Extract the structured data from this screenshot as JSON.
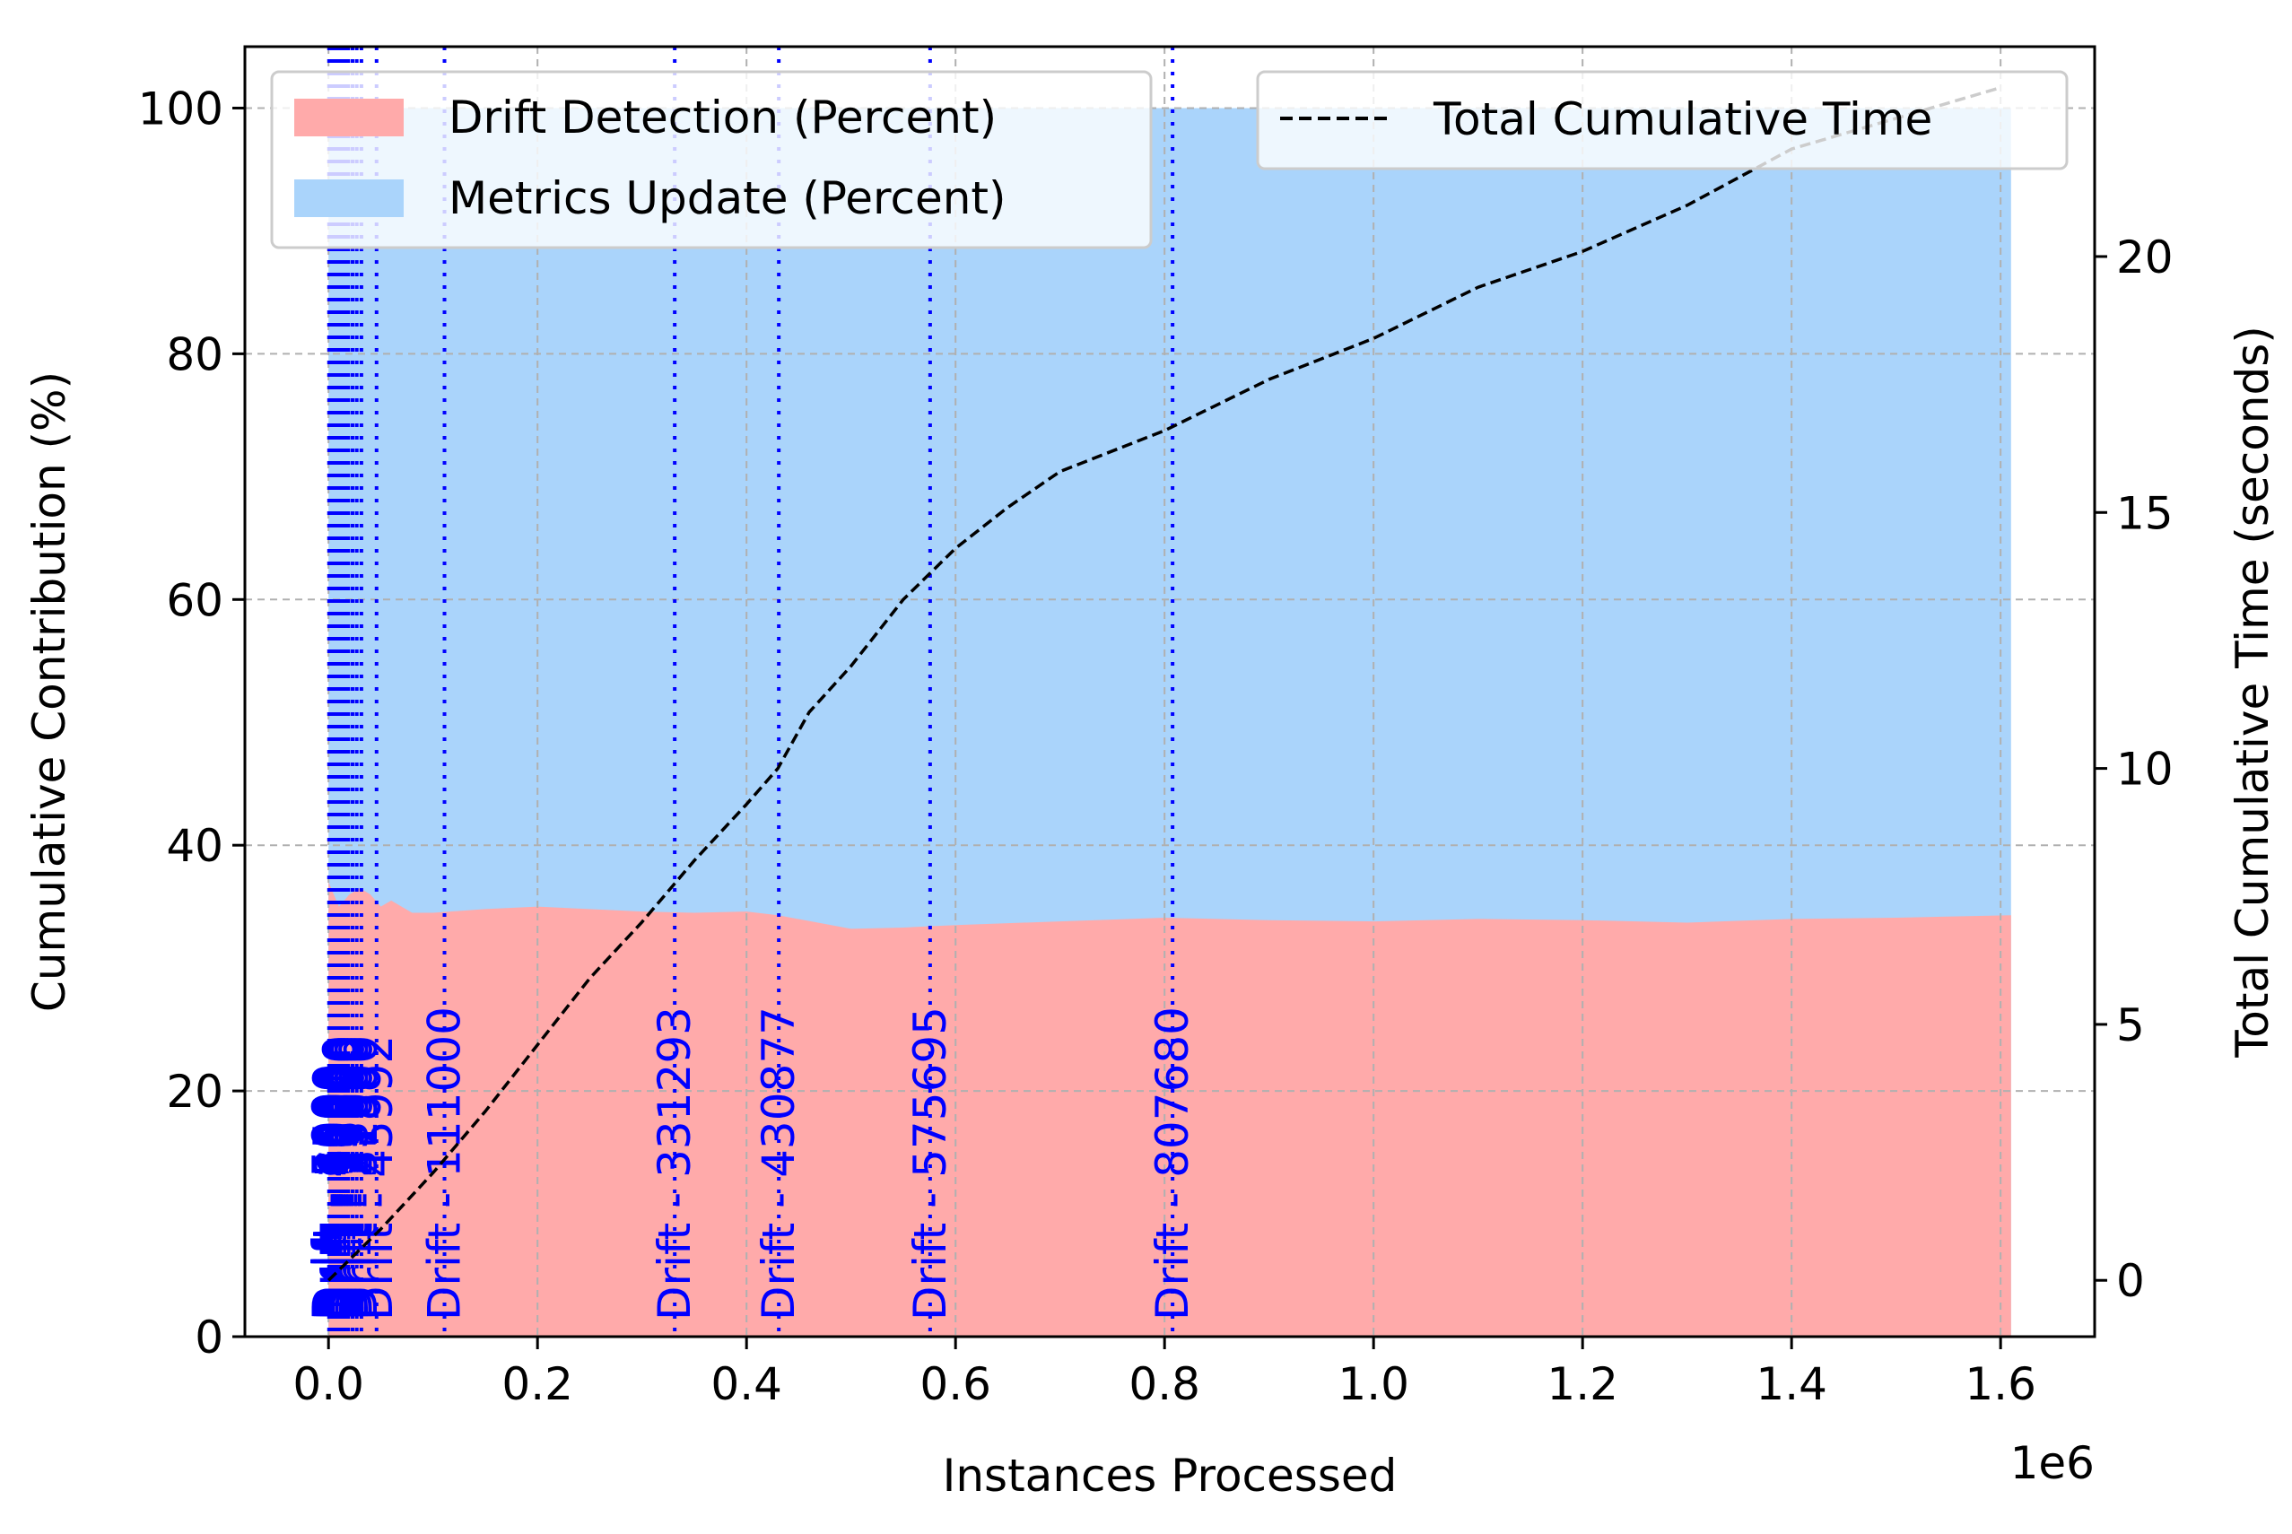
{
  "chart_data": {
    "type": "area",
    "title": "",
    "xlabel": "Instances Processed",
    "x_offset_label": "1e6",
    "ylabel_left": "Cumulative Contribution (%)",
    "ylabel_right": "Total Cumulative Time (seconds)",
    "xlim": [
      -0.08,
      1.69
    ],
    "ylim_left": [
      0,
      105
    ],
    "ylim_right": [
      -1.1,
      24.1
    ],
    "x_ticks": [
      0.0,
      0.2,
      0.4,
      0.6,
      0.8,
      1.0,
      1.2,
      1.4,
      1.6
    ],
    "x_tick_labels": [
      "0.0",
      "0.2",
      "0.4",
      "0.6",
      "0.8",
      "1.0",
      "1.2",
      "1.4",
      "1.6"
    ],
    "y_left_ticks": [
      0,
      20,
      40,
      60,
      80,
      100
    ],
    "y_left_tick_labels": [
      "0",
      "20",
      "40",
      "60",
      "80",
      "100"
    ],
    "y_right_ticks": [
      0,
      5,
      10,
      15,
      20
    ],
    "y_right_tick_labels": [
      "0",
      "5",
      "10",
      "15",
      "20"
    ],
    "grid": true,
    "colors": {
      "drift": "#ffaaaa",
      "metrics": "#aad4fb",
      "total_line": "#000000",
      "drift_marker": "#0000ff",
      "grid": "#b0b0b0"
    },
    "series": [
      {
        "name": "Drift Detection (Percent)",
        "axis": "left",
        "x": [
          0.0,
          0.005,
          0.01,
          0.02,
          0.03,
          0.04,
          0.05,
          0.06,
          0.08,
          0.1,
          0.15,
          0.2,
          0.25,
          0.3,
          0.35,
          0.4,
          0.43,
          0.5,
          0.55,
          0.6,
          0.7,
          0.8,
          0.9,
          1.0,
          1.1,
          1.2,
          1.3,
          1.4,
          1.5,
          1.61
        ],
        "y": [
          37,
          36,
          35,
          36,
          36.5,
          36,
          35,
          35.5,
          34.5,
          34.5,
          34.8,
          35,
          34.8,
          34.6,
          34.5,
          34.6,
          34.3,
          33.2,
          33.3,
          33.5,
          33.8,
          34.1,
          33.9,
          33.8,
          34.0,
          33.9,
          33.7,
          34.0,
          34.1,
          34.3
        ]
      },
      {
        "name": "Metrics Update (Percent)",
        "axis": "left",
        "x": [
          0.0,
          1.61
        ],
        "y": [
          100,
          100
        ]
      },
      {
        "name": "Total Cumulative Time",
        "axis": "right",
        "style": "dashed",
        "x": [
          0.0,
          0.05,
          0.1,
          0.15,
          0.2,
          0.25,
          0.3,
          0.35,
          0.4,
          0.43,
          0.46,
          0.5,
          0.55,
          0.6,
          0.65,
          0.7,
          0.8,
          0.9,
          1.0,
          1.1,
          1.2,
          1.3,
          1.4,
          1.5,
          1.6
        ],
        "y": [
          0.0,
          1.0,
          2.1,
          3.3,
          4.6,
          5.9,
          7.0,
          8.2,
          9.3,
          10.0,
          11.1,
          12.0,
          13.3,
          14.3,
          15.1,
          15.8,
          16.6,
          17.6,
          18.4,
          19.4,
          20.1,
          21.0,
          22.1,
          22.7,
          23.3
        ]
      }
    ],
    "drift_markers": [
      {
        "x": 0.0005,
        "label": "Drift - 500"
      },
      {
        "x": 0.0015,
        "label": "Drift - 1500"
      },
      {
        "x": 0.003,
        "label": "Drift - 3000"
      },
      {
        "x": 0.0045,
        "label": "Drift - 4500"
      },
      {
        "x": 0.006,
        "label": "Drift - 6000"
      },
      {
        "x": 0.0075,
        "label": "Drift - 7500"
      },
      {
        "x": 0.009,
        "label": "Drift - 9000"
      },
      {
        "x": 0.011,
        "label": "Drift - 11000"
      },
      {
        "x": 0.0135,
        "label": "Drift - 13500"
      },
      {
        "x": 0.016,
        "label": "Drift - 16000"
      },
      {
        "x": 0.019,
        "label": "Drift - 19000"
      },
      {
        "x": 0.023,
        "label": "Drift - 23000"
      },
      {
        "x": 0.027,
        "label": "Drift - 27000"
      },
      {
        "x": 0.0315,
        "label": "Drift - 31500"
      },
      {
        "x": 0.045992,
        "label": "Drift - 45992"
      },
      {
        "x": 0.111,
        "label": "Drift - 111000"
      },
      {
        "x": 0.331293,
        "label": "Drift - 331293"
      },
      {
        "x": 0.430877,
        "label": "Drift - 430877"
      },
      {
        "x": 0.575695,
        "label": "Drift - 575695"
      },
      {
        "x": 0.80768,
        "label": "Drift - 807680"
      }
    ],
    "legends": [
      {
        "placement": "upper-left",
        "entries": [
          "Drift Detection (Percent)",
          "Metrics Update (Percent)"
        ]
      },
      {
        "placement": "upper-right",
        "entries": [
          "Total Cumulative Time"
        ]
      }
    ]
  }
}
